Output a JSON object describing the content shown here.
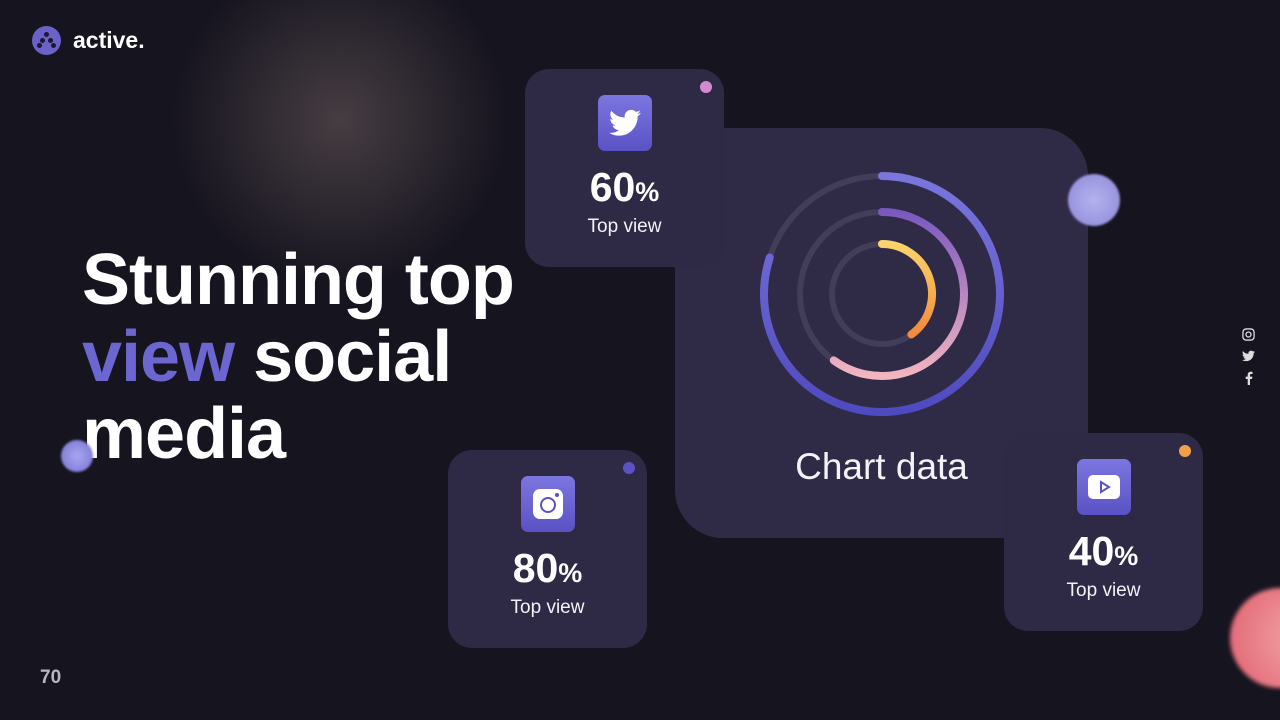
{
  "brand": {
    "name": "active.",
    "color": "#6a62c8"
  },
  "headline": {
    "line1": "Stunning top",
    "accent": "view",
    "line2_rest": " social",
    "line3": "media",
    "accent_color": "#6b66d0"
  },
  "page_number": "70",
  "chart": {
    "title": "Chart data"
  },
  "chart_data": {
    "type": "radial-progress",
    "title": "Chart data",
    "series": [
      {
        "values": [
          80
        ],
        "color": "#6b66d0"
      },
      {
        "values": [
          60
        ],
        "color": "#c88ec0"
      },
      {
        "values": [
          40
        ],
        "color": "#f7b54c"
      }
    ]
  },
  "cards": [
    {
      "platform": "twitter",
      "icon": "twitter-icon",
      "value": "60",
      "unit": "%",
      "label": "Top view",
      "dot_color": "#d48ad0"
    },
    {
      "platform": "instagram",
      "icon": "instagram-icon",
      "value": "80",
      "unit": "%",
      "label": "Top view",
      "dot_color": "#5a52c4"
    },
    {
      "platform": "youtube",
      "icon": "youtube-icon",
      "value": "40",
      "unit": "%",
      "label": "Top view",
      "dot_color": "#f4a04a"
    }
  ],
  "social_links": [
    "instagram-icon",
    "twitter-icon",
    "facebook-icon"
  ]
}
